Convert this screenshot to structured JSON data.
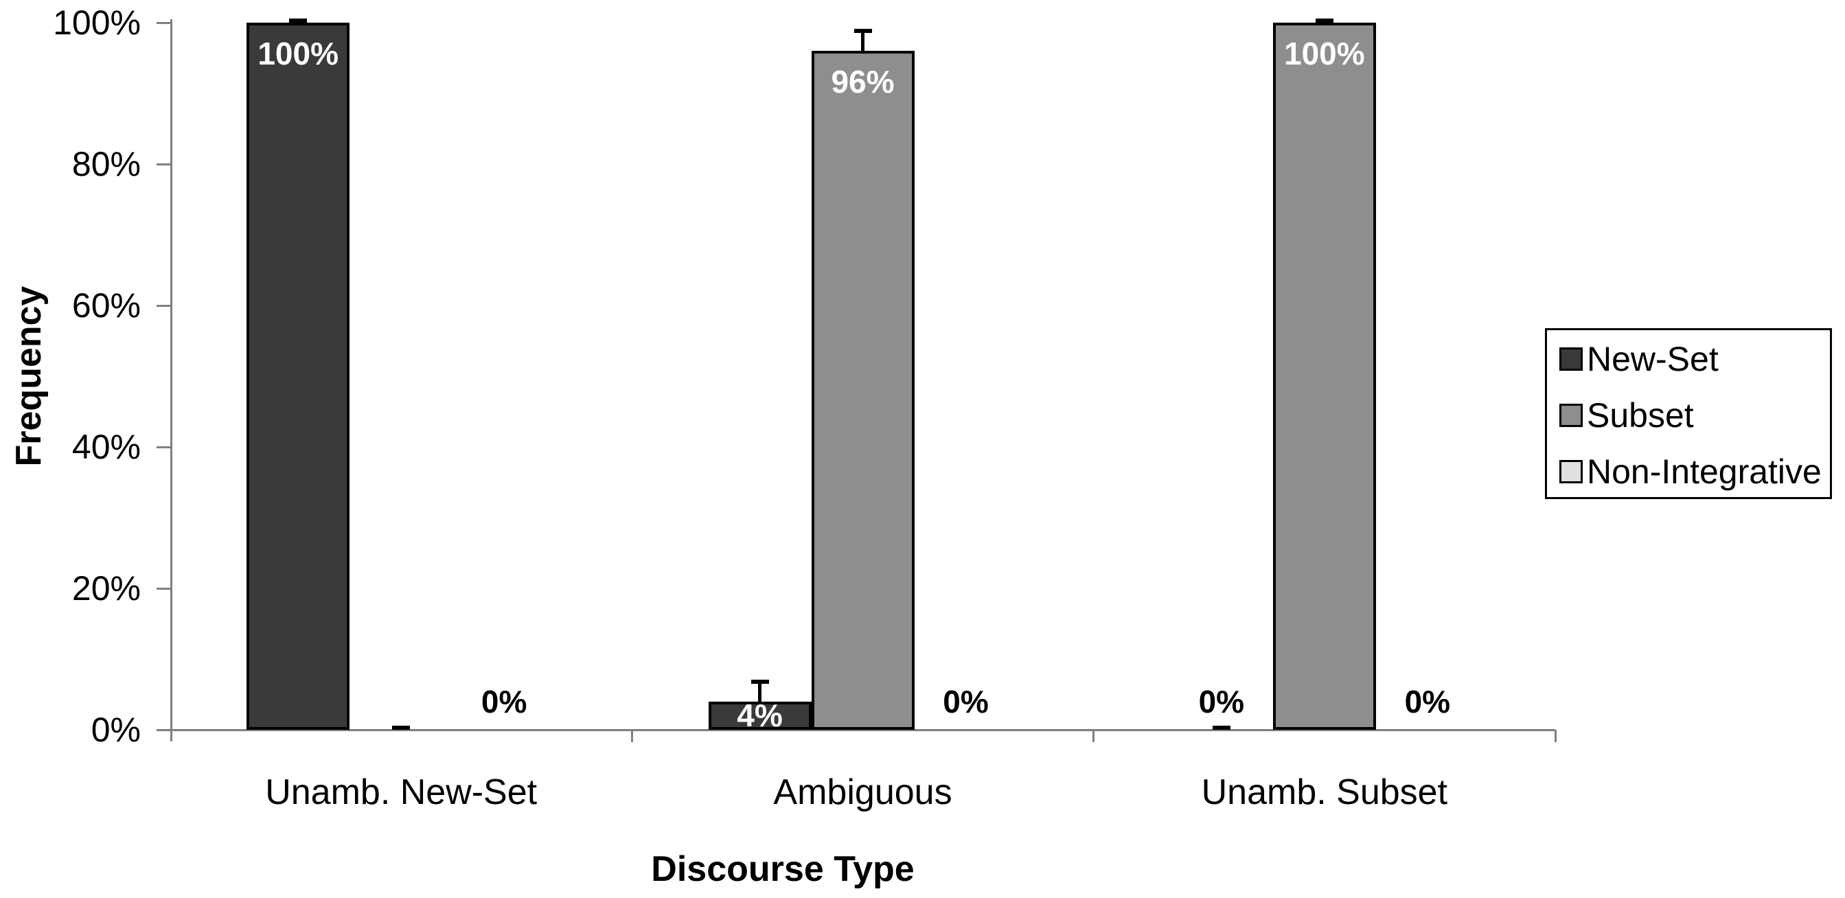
{
  "chart_data": {
    "type": "bar",
    "title": "",
    "xlabel": "Discourse Type",
    "ylabel": "Frequency",
    "categories": [
      "Unamb. New-Set",
      "Ambiguous",
      "Unamb. Subset"
    ],
    "series": [
      {
        "name": "New-Set",
        "color": "#3a3a3a",
        "values": [
          100,
          4,
          0
        ],
        "data_labels": [
          "100%",
          "4%",
          "0%"
        ],
        "label_colors": [
          "#ffffff",
          "#ffffff",
          "#000000"
        ],
        "label_placement": [
          "inside-top",
          "inside-middle",
          "above-axis"
        ],
        "error_upper": [
          0,
          2.5,
          0
        ],
        "error_bar_shown": [
          true,
          true,
          true
        ]
      },
      {
        "name": "Subset",
        "color": "#8e8e8e",
        "values": [
          0,
          96,
          100
        ],
        "data_labels": [
          "",
          "96%",
          "100%"
        ],
        "label_colors": [
          "",
          "#ffffff",
          "#ffffff"
        ],
        "label_placement": [
          null,
          "inside-top",
          "inside-top"
        ],
        "error_upper": [
          0,
          2.5,
          0
        ],
        "error_bar_shown": [
          true,
          true,
          true
        ]
      },
      {
        "name": "Non-Integrative",
        "color": "#e0e0e0",
        "values": [
          0,
          0,
          0
        ],
        "data_labels": [
          "0%",
          "0%",
          "0%"
        ],
        "label_colors": [
          "#000000",
          "#000000",
          "#000000"
        ],
        "label_placement": [
          "above-axis",
          "above-axis",
          "above-axis"
        ],
        "error_upper": [
          0,
          0,
          0
        ],
        "error_bar_shown": [
          false,
          false,
          false
        ]
      }
    ],
    "ylim": [
      0,
      100
    ],
    "ytick_labels": [
      "0%",
      "20%",
      "40%",
      "60%",
      "80%",
      "100%"
    ],
    "ytick_values": [
      0,
      20,
      40,
      60,
      80,
      100
    ],
    "grid": "off",
    "legend_position": "right",
    "legend_entries": [
      "New-Set",
      "Subset",
      "Non-Integrative"
    ],
    "bar_outline_color": "#000000",
    "error_bar_color": "#000000",
    "axis_color": "#7f7f7f",
    "text_color": "#000000"
  }
}
